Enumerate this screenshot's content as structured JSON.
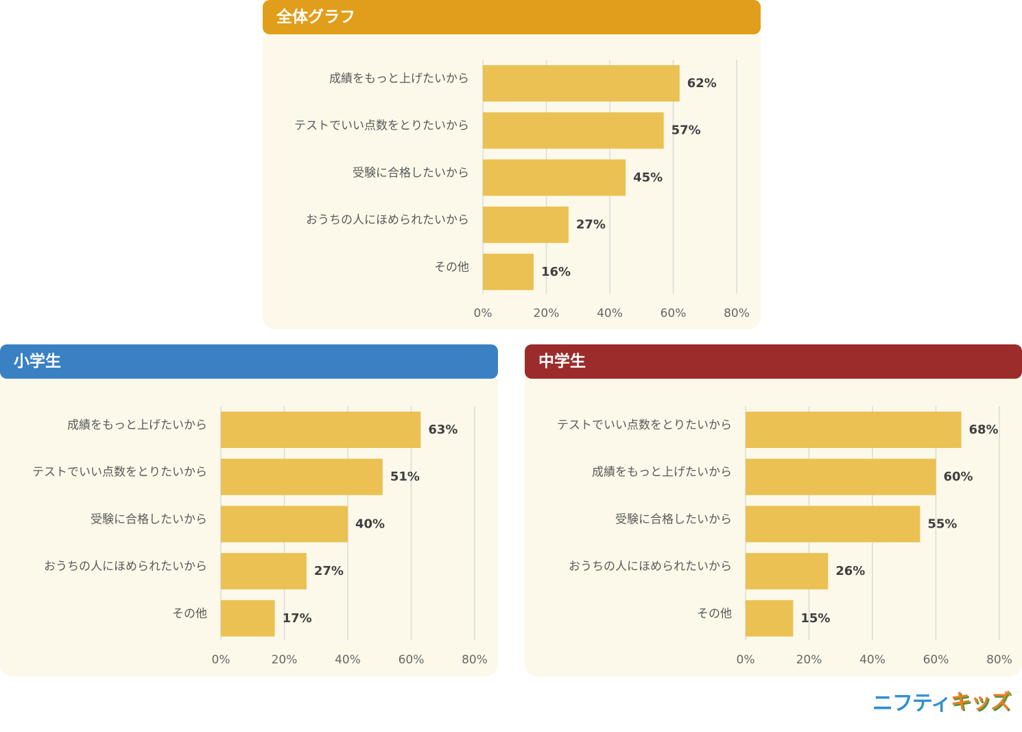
{
  "brand": {
    "part1": "ニフティ",
    "part2": "キッズ"
  },
  "colors": {
    "bar": "#eac152",
    "grid": "#dadada",
    "overall": "#e19e1a",
    "elementary": "#3a81c3",
    "junior": "#9c2b2b"
  },
  "chart_data": [
    {
      "type": "bar",
      "orientation": "horizontal",
      "title": "全体グラフ",
      "categories": [
        "成績をもっと上げたいから",
        "テストでいい点数をとりたいから",
        "受験に合格したいから",
        "おうちの人にほめられたいから",
        "その他"
      ],
      "values": [
        62,
        57,
        45,
        27,
        16
      ],
      "value_labels": [
        "62%",
        "57%",
        "45%",
        "27%",
        "16%"
      ],
      "xlim": [
        0,
        80
      ],
      "ticks": [
        "0%",
        "20%",
        "40%",
        "60%",
        "80%"
      ],
      "grid": true
    },
    {
      "type": "bar",
      "orientation": "horizontal",
      "title": "小学生",
      "categories": [
        "成績をもっと上げたいから",
        "テストでいい点数をとりたいから",
        "受験に合格したいから",
        "おうちの人にほめられたいから",
        "その他"
      ],
      "values": [
        63,
        51,
        40,
        27,
        17
      ],
      "value_labels": [
        "63%",
        "51%",
        "40%",
        "27%",
        "17%"
      ],
      "xlim": [
        0,
        80
      ],
      "ticks": [
        "0%",
        "20%",
        "40%",
        "60%",
        "80%"
      ],
      "grid": true
    },
    {
      "type": "bar",
      "orientation": "horizontal",
      "title": "中学生",
      "categories": [
        "テストでいい点数をとりたいから",
        "成績をもっと上げたいから",
        "受験に合格したいから",
        "おうちの人にほめられたいから",
        "その他"
      ],
      "values": [
        68,
        60,
        55,
        26,
        15
      ],
      "value_labels": [
        "68%",
        "60%",
        "55%",
        "26%",
        "15%"
      ],
      "xlim": [
        0,
        80
      ],
      "ticks": [
        "0%",
        "20%",
        "40%",
        "60%",
        "80%"
      ],
      "grid": true
    }
  ]
}
